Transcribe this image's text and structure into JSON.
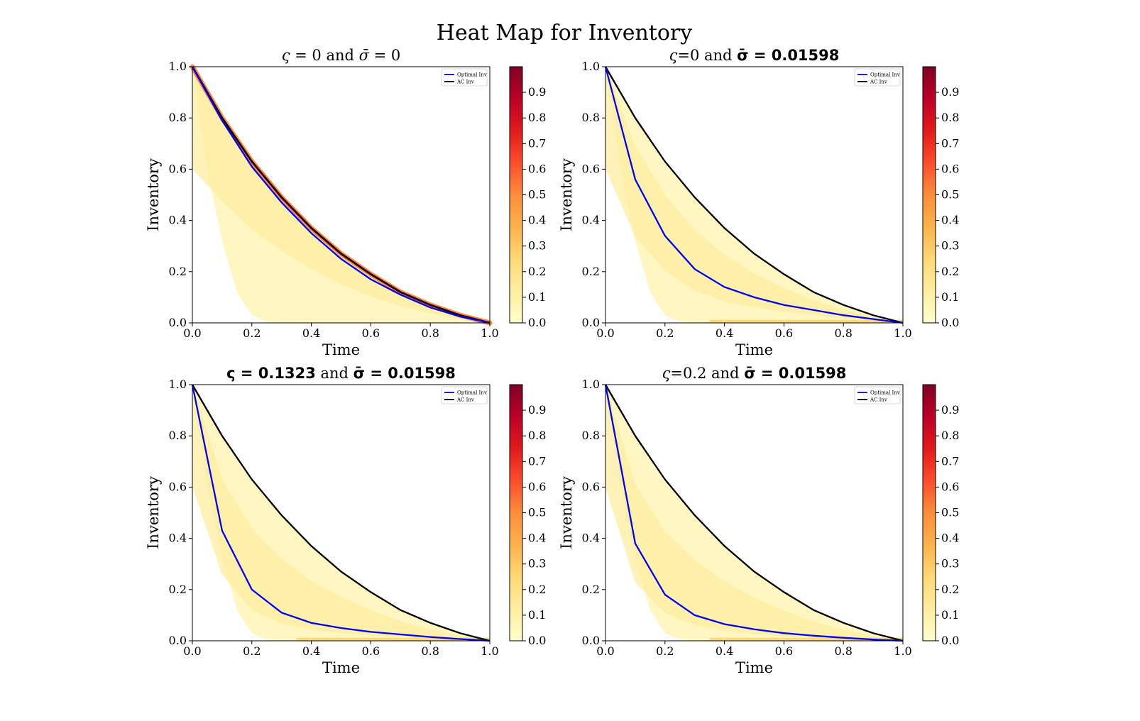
{
  "figure": {
    "suptitle": "Heat Map for Inventory"
  },
  "colors": {
    "optimal": "#0000ff",
    "ac": "#000000",
    "cmap": [
      "#ffffcc",
      "#ffeda0",
      "#fed976",
      "#feb24c",
      "#fd8d3c",
      "#fc4e2a",
      "#e31a1c",
      "#bd0026",
      "#800026"
    ]
  },
  "chart_data": [
    {
      "type": "heatmap",
      "title_parts": [
        {
          "text": "ς",
          "style": "italic"
        },
        {
          "text": " = 0 and ",
          "style": "normal"
        },
        {
          "text": "σ̄",
          "style": "italic"
        },
        {
          "text": " = 0",
          "style": "normal"
        }
      ],
      "xlabel": "Time",
      "ylabel": "Inventory",
      "xlim": [
        0,
        1
      ],
      "ylim": [
        0,
        1
      ],
      "xticks": [
        "0.0",
        "0.2",
        "0.4",
        "0.6",
        "0.8",
        "1.0"
      ],
      "yticks": [
        "0.0",
        "0.2",
        "0.4",
        "0.6",
        "0.8",
        "1.0"
      ],
      "colorbar_ticks": [
        "0.0",
        "0.1",
        "0.2",
        "0.3",
        "0.4",
        "0.5",
        "0.6",
        "0.7",
        "0.8",
        "0.9"
      ],
      "colorbar_range": [
        0,
        1
      ],
      "legend": {
        "position": "top-right",
        "entries": [
          "Optimal Inv",
          "AC Inv"
        ]
      },
      "series": [
        {
          "name": "Optimal Inv",
          "x": [
            0,
            0.1,
            0.2,
            0.3,
            0.4,
            0.5,
            0.6,
            0.7,
            0.8,
            0.9,
            1.0
          ],
          "y": [
            1.0,
            0.79,
            0.61,
            0.47,
            0.35,
            0.25,
            0.17,
            0.11,
            0.06,
            0.025,
            0.0
          ]
        },
        {
          "name": "AC Inv",
          "x": [
            0,
            0.1,
            0.2,
            0.3,
            0.4,
            0.5,
            0.6,
            0.7,
            0.8,
            0.9,
            1.0
          ],
          "y": [
            1.0,
            0.8,
            0.63,
            0.49,
            0.37,
            0.27,
            0.19,
            0.12,
            0.07,
            0.03,
            0.0
          ]
        }
      ],
      "heat_level": 0.85
    },
    {
      "type": "heatmap",
      "title_parts": [
        {
          "text": "ς",
          "style": "italic"
        },
        {
          "text": "=0 and ",
          "style": "normal"
        },
        {
          "text": "σ̄ = 0.01598",
          "style": "bold"
        }
      ],
      "xlabel": "Time",
      "ylabel": "Inventory",
      "xlim": [
        0,
        1
      ],
      "ylim": [
        0,
        1
      ],
      "xticks": [
        "0.0",
        "0.2",
        "0.4",
        "0.6",
        "0.8",
        "1.0"
      ],
      "yticks": [
        "0.0",
        "0.2",
        "0.4",
        "0.6",
        "0.8",
        "1.0"
      ],
      "colorbar_ticks": [
        "0.0",
        "0.1",
        "0.2",
        "0.3",
        "0.4",
        "0.5",
        "0.6",
        "0.7",
        "0.8",
        "0.9"
      ],
      "colorbar_range": [
        0,
        1
      ],
      "legend": {
        "position": "top-right",
        "entries": [
          "Optimal Inv",
          "AC Inv"
        ]
      },
      "series": [
        {
          "name": "Optimal Inv",
          "x": [
            0,
            0.1,
            0.2,
            0.3,
            0.4,
            0.5,
            0.6,
            0.7,
            0.8,
            0.9,
            1.0
          ],
          "y": [
            1.0,
            0.56,
            0.34,
            0.21,
            0.14,
            0.1,
            0.07,
            0.05,
            0.03,
            0.015,
            0.0
          ]
        },
        {
          "name": "AC Inv",
          "x": [
            0,
            0.1,
            0.2,
            0.3,
            0.4,
            0.5,
            0.6,
            0.7,
            0.8,
            0.9,
            1.0
          ],
          "y": [
            1.0,
            0.8,
            0.63,
            0.49,
            0.37,
            0.27,
            0.19,
            0.12,
            0.07,
            0.03,
            0.0
          ]
        }
      ],
      "heat_level": 0.2
    },
    {
      "type": "heatmap",
      "title_parts": [
        {
          "text": "ς = 0.1323",
          "style": "bold"
        },
        {
          "text": " and ",
          "style": "normal"
        },
        {
          "text": "σ̄ = 0.01598",
          "style": "bold"
        }
      ],
      "xlabel": "Time",
      "ylabel": "Inventory",
      "xlim": [
        0,
        1
      ],
      "ylim": [
        0,
        1
      ],
      "xticks": [
        "0.0",
        "0.2",
        "0.4",
        "0.6",
        "0.8",
        "1.0"
      ],
      "yticks": [
        "0.0",
        "0.2",
        "0.4",
        "0.6",
        "0.8",
        "1.0"
      ],
      "colorbar_ticks": [
        "0.0",
        "0.1",
        "0.2",
        "0.3",
        "0.4",
        "0.5",
        "0.6",
        "0.7",
        "0.8",
        "0.9"
      ],
      "colorbar_range": [
        0,
        1
      ],
      "legend": {
        "position": "top-right",
        "entries": [
          "Optimal Inv",
          "AC Inv"
        ]
      },
      "series": [
        {
          "name": "Optimal Inv",
          "x": [
            0,
            0.1,
            0.2,
            0.3,
            0.4,
            0.5,
            0.6,
            0.7,
            0.8,
            0.9,
            1.0
          ],
          "y": [
            1.0,
            0.43,
            0.2,
            0.11,
            0.07,
            0.05,
            0.035,
            0.025,
            0.015,
            0.007,
            0.0
          ]
        },
        {
          "name": "AC Inv",
          "x": [
            0,
            0.1,
            0.2,
            0.3,
            0.4,
            0.5,
            0.6,
            0.7,
            0.8,
            0.9,
            1.0
          ],
          "y": [
            1.0,
            0.8,
            0.63,
            0.49,
            0.37,
            0.27,
            0.19,
            0.12,
            0.07,
            0.03,
            0.0
          ]
        }
      ],
      "heat_level": 0.2
    },
    {
      "type": "heatmap",
      "title_parts": [
        {
          "text": "ς",
          "style": "italic"
        },
        {
          "text": "=0.2 and ",
          "style": "normal"
        },
        {
          "text": "σ̄ = 0.01598",
          "style": "bold"
        }
      ],
      "xlabel": "Time",
      "ylabel": "Inventory",
      "xlim": [
        0,
        1
      ],
      "ylim": [
        0,
        1
      ],
      "xticks": [
        "0.0",
        "0.2",
        "0.4",
        "0.6",
        "0.8",
        "1.0"
      ],
      "yticks": [
        "0.0",
        "0.2",
        "0.4",
        "0.6",
        "0.8",
        "1.0"
      ],
      "colorbar_ticks": [
        "0.0",
        "0.1",
        "0.2",
        "0.3",
        "0.4",
        "0.5",
        "0.6",
        "0.7",
        "0.8",
        "0.9"
      ],
      "colorbar_range": [
        0,
        1
      ],
      "legend": {
        "position": "top-right",
        "entries": [
          "Optimal Inv",
          "AC Inv"
        ]
      },
      "series": [
        {
          "name": "Optimal Inv",
          "x": [
            0,
            0.1,
            0.2,
            0.3,
            0.4,
            0.5,
            0.6,
            0.7,
            0.8,
            0.9,
            1.0
          ],
          "y": [
            1.0,
            0.38,
            0.18,
            0.1,
            0.065,
            0.045,
            0.03,
            0.02,
            0.012,
            0.005,
            0.0
          ]
        },
        {
          "name": "AC Inv",
          "x": [
            0,
            0.1,
            0.2,
            0.3,
            0.4,
            0.5,
            0.6,
            0.7,
            0.8,
            0.9,
            1.0
          ],
          "y": [
            1.0,
            0.8,
            0.63,
            0.49,
            0.37,
            0.27,
            0.19,
            0.12,
            0.07,
            0.03,
            0.0
          ]
        }
      ],
      "heat_level": 0.2
    }
  ]
}
